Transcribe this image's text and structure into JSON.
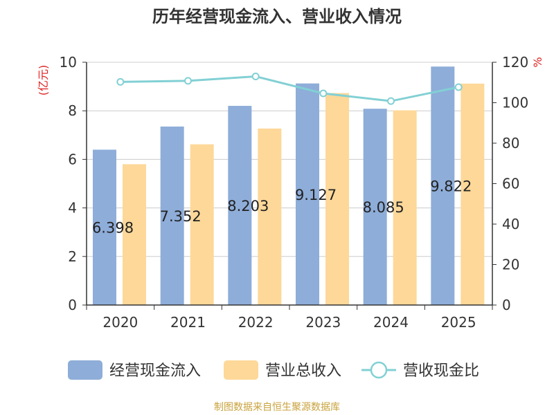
{
  "title": "历年经营现金流入、营业收入情况",
  "source": "制图数据来自恒生聚源数据库",
  "colors": {
    "cash_inflow": "#8eadd9",
    "revenue": "#fdd899",
    "ratio": "#82d0d4",
    "axis_unit": "#e02020",
    "text": "#333333",
    "grid": "#cccccc"
  },
  "chart_data": {
    "type": "bar",
    "categories": [
      "2020",
      "2021",
      "2022",
      "2023",
      "2024",
      "2025"
    ],
    "series": [
      {
        "name": "经营现金流入",
        "type": "bar",
        "axis": "left",
        "values": [
          6.398,
          7.352,
          8.203,
          9.127,
          8.085,
          9.822
        ],
        "labels": [
          "6.398",
          "7.352",
          "8.203",
          "9.127",
          "8.085",
          "9.822"
        ]
      },
      {
        "name": "营业总收入",
        "type": "bar",
        "axis": "left",
        "values": [
          5.8,
          6.62,
          7.27,
          8.73,
          8.02,
          9.12
        ]
      },
      {
        "name": "营收现金比",
        "type": "line",
        "axis": "right",
        "values": [
          110.3,
          110.8,
          113.0,
          104.6,
          100.8,
          107.7
        ]
      }
    ],
    "y_left": {
      "unit": "(亿元)",
      "ylim": [
        0,
        10
      ],
      "ticks": [
        "0",
        "2",
        "4",
        "6",
        "8",
        "10"
      ]
    },
    "y_right": {
      "unit": "%",
      "ylim": [
        0,
        120
      ],
      "ticks": [
        "0",
        "20",
        "40",
        "60",
        "80",
        "100",
        "120"
      ]
    },
    "grid": true,
    "legend_position": "bottom"
  }
}
